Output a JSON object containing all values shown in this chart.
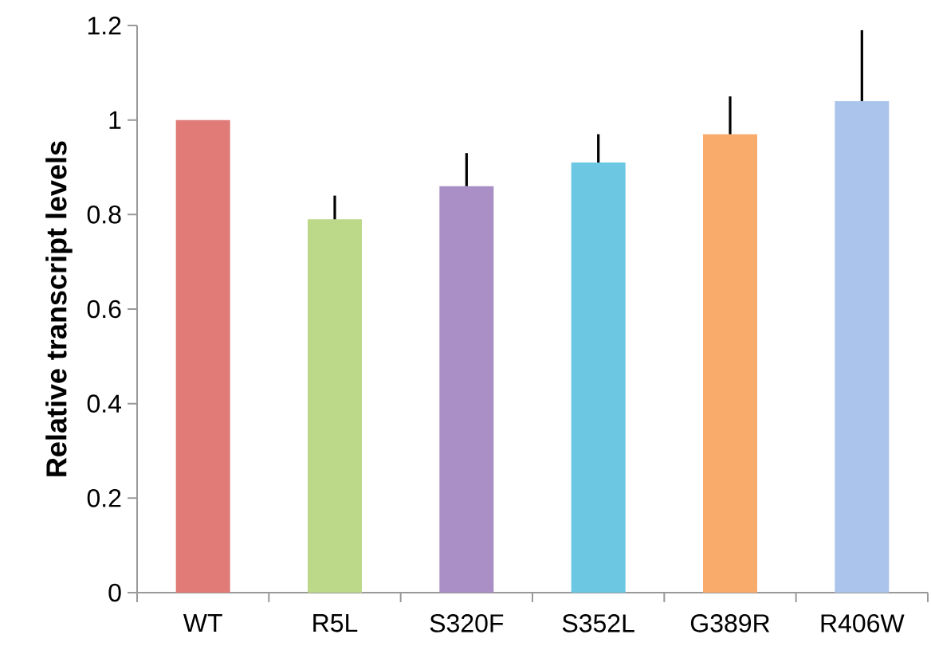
{
  "chart_data": {
    "type": "bar",
    "ylabel": "Relative transcript levels",
    "categories": [
      "WT",
      "R5L",
      "S320F",
      "S352L",
      "G389R",
      "R406W"
    ],
    "values": [
      1.0,
      0.79,
      0.86,
      0.91,
      0.97,
      1.04
    ],
    "errors": [
      null,
      [
        0.79,
        0.84
      ],
      [
        0.86,
        0.93
      ],
      [
        0.91,
        0.97
      ],
      [
        0.97,
        1.05
      ],
      [
        1.04,
        1.19
      ]
    ],
    "colors": [
      "#e07b78",
      "#bcd98a",
      "#a98fc6",
      "#6cc8e2",
      "#f8ab6a",
      "#aac4ec"
    ],
    "ylim": [
      0,
      1.2
    ],
    "yticks": [
      0,
      0.2,
      0.4,
      0.6,
      0.8,
      1,
      1.2
    ]
  }
}
